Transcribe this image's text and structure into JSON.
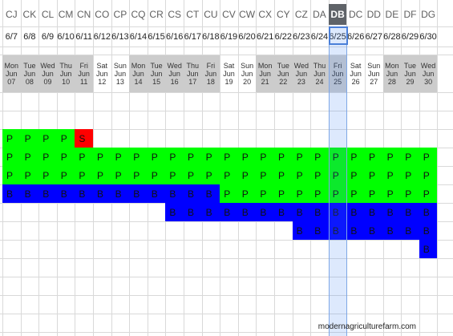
{
  "columns": [
    "CJ",
    "CK",
    "CL",
    "CM",
    "CN",
    "CO",
    "CP",
    "CQ",
    "CR",
    "CS",
    "CT",
    "CU",
    "CV",
    "CW",
    "CX",
    "CY",
    "CZ",
    "DA",
    "DB",
    "DC",
    "DD",
    "DE",
    "DF",
    "DG"
  ],
  "dates": [
    "6/7",
    "6/8",
    "6/9",
    "6/10",
    "6/11",
    "6/12",
    "6/13",
    "6/14",
    "6/15",
    "6/16",
    "6/17",
    "6/18",
    "6/19",
    "6/20",
    "6/21",
    "6/22",
    "6/23",
    "6/24",
    "6/25",
    "6/26",
    "6/27",
    "6/28",
    "6/29",
    "6/30"
  ],
  "days": [
    [
      "Mon",
      "Jun",
      "07"
    ],
    [
      "Tue",
      "Jun",
      "08"
    ],
    [
      "Wed",
      "Jun",
      "09"
    ],
    [
      "Thu",
      "Jun",
      "10"
    ],
    [
      "Fri",
      "Jun",
      "11"
    ],
    [
      "Sat",
      "Jun",
      "12"
    ],
    [
      "Sun",
      "Jun",
      "13"
    ],
    [
      "Mon",
      "Jun",
      "14"
    ],
    [
      "Tue",
      "Jun",
      "15"
    ],
    [
      "Wed",
      "Jun",
      "16"
    ],
    [
      "Thu",
      "Jun",
      "17"
    ],
    [
      "Fri",
      "Jun",
      "18"
    ],
    [
      "Sat",
      "Jun",
      "19"
    ],
    [
      "Sun",
      "Jun",
      "20"
    ],
    [
      "Mon",
      "Jun",
      "21"
    ],
    [
      "Tue",
      "Jun",
      "22"
    ],
    [
      "Wed",
      "Jun",
      "23"
    ],
    [
      "Thu",
      "Jun",
      "24"
    ],
    [
      "Fri",
      "Jun",
      "25"
    ],
    [
      "Sat",
      "Jun",
      "26"
    ],
    [
      "Sun",
      "Jun",
      "27"
    ],
    [
      "Mon",
      "Jun",
      "28"
    ],
    [
      "Tue",
      "Jun",
      "29"
    ],
    [
      "Wed",
      "Jun",
      "30"
    ]
  ],
  "weekday_shaded": [
    true,
    true,
    true,
    true,
    true,
    false,
    false,
    true,
    true,
    true,
    true,
    true,
    false,
    false,
    true,
    true,
    true,
    true,
    true,
    false,
    false,
    true,
    true,
    true
  ],
  "selected_column": "DB",
  "colors": {
    "green": "#00ff00",
    "blue": "#0000ff",
    "red": "#ff0000",
    "white": "#ffffff"
  },
  "rows": [
    {
      "label_row": 1,
      "cells": [
        {
          "from": "CJ",
          "to": "CM",
          "text": "P",
          "fill": "green"
        },
        {
          "from": "CN",
          "to": "CN",
          "text": "S",
          "fill": "red"
        }
      ]
    },
    {
      "label_row": 2,
      "cells": [
        {
          "from": "CJ",
          "to": "DG",
          "text": "P",
          "fill": "green"
        }
      ]
    },
    {
      "label_row": 3,
      "cells": [
        {
          "from": "CJ",
          "to": "DG",
          "text": "P",
          "fill": "green"
        }
      ]
    },
    {
      "label_row": 4,
      "cells": [
        {
          "from": "CJ",
          "to": "CU",
          "text": "B",
          "fill": "blue"
        },
        {
          "from": "CV",
          "to": "DG",
          "text": "P",
          "fill": "green"
        }
      ]
    },
    {
      "label_row": 5,
      "cells": [
        {
          "from": "CS",
          "to": "DG",
          "text": "B",
          "fill": "blue"
        }
      ]
    },
    {
      "label_row": 6,
      "cells": [
        {
          "from": "CZ",
          "to": "DG",
          "text": "B",
          "fill": "blue"
        }
      ]
    },
    {
      "label_row": 7,
      "cells": [
        {
          "from": "DG",
          "to": "DG",
          "text": "B",
          "fill": "blue"
        }
      ]
    }
  ],
  "watermark": "modernagriculturefarm.com"
}
